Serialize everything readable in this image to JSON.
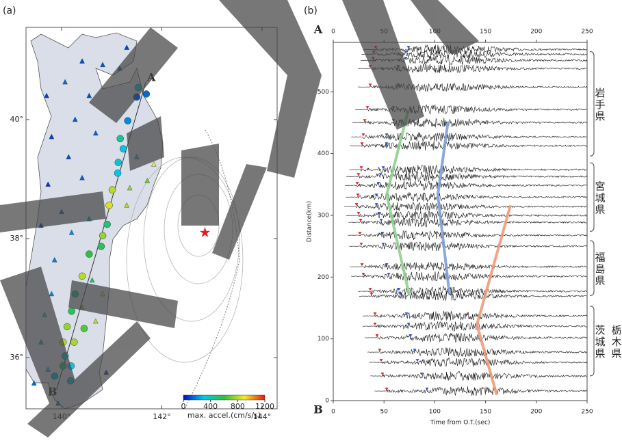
{
  "chart_data": [
    {
      "type": "map",
      "label": "(a)",
      "xlim": [
        139.29,
        144.3
      ],
      "ylim": [
        35.14,
        41.55
      ],
      "xticks": [
        {
          "value": 140,
          "label": "140°"
        },
        {
          "value": 142,
          "label": "142°"
        },
        {
          "value": 144,
          "label": "144°"
        }
      ],
      "yticks": [
        {
          "value": 36,
          "label": "36°"
        },
        {
          "value": 38,
          "label": "38°"
        },
        {
          "value": 40,
          "label": "40°"
        }
      ],
      "profile": {
        "names": [
          "A",
          "B"
        ],
        "lon": [
          141.68,
          139.9
        ],
        "lat": [
          40.63,
          35.46
        ]
      },
      "epicenter": {
        "lon": 142.86,
        "lat": 38.1,
        "color": "#e02020"
      },
      "circles": {
        "lon": [
          141.53,
          141.69,
          141.5,
          141.32,
          141.17,
          141.23,
          141.13,
          141.12,
          141.01,
          140.95,
          140.91,
          140.82,
          140.79,
          140.55,
          140.41,
          140.27,
          140.2,
          140.11,
          140.45,
          140.03,
          140.25,
          140.07,
          140.03,
          140.19,
          139.86,
          140.18
        ],
        "lat": [
          40.54,
          40.43,
          40.38,
          39.98,
          39.68,
          39.51,
          39.28,
          39.1,
          38.82,
          38.56,
          38.24,
          38.05,
          37.87,
          37.74,
          37.37,
          37.07,
          36.78,
          36.52,
          36.49,
          36.26,
          36.26,
          36.03,
          35.86,
          35.86,
          35.69,
          35.61
        ],
        "accel": [
          300,
          150,
          100,
          200,
          450,
          300,
          350,
          300,
          800,
          850,
          500,
          750,
          550,
          600,
          800,
          450,
          550,
          750,
          650,
          800,
          780,
          350,
          500,
          300,
          250,
          280
        ]
      },
      "triangles": {
        "lon": [
          140.07,
          140.41,
          140.82,
          141.16,
          141.3,
          140.55,
          139.7,
          140.27,
          139.8,
          140.68,
          140.14,
          141.5,
          141.84,
          141.71,
          141.36,
          140.41,
          139.73,
          140.0,
          140.55,
          141.3,
          139.59,
          140.2,
          139.86,
          140.61,
          140.82,
          139.8,
          139.66,
          140.41,
          140.68,
          139.59,
          139.73,
          139.45,
          139.93,
          140.89
        ],
        "lat": [
          40.63,
          40.98,
          40.92,
          40.86,
          41.21,
          40.4,
          40.4,
          40.0,
          39.71,
          39.77,
          39.37,
          39.37,
          39.25,
          38.97,
          38.85,
          39.02,
          38.91,
          38.45,
          38.33,
          38.56,
          38.22,
          38.1,
          37.64,
          37.3,
          37.07,
          37.07,
          36.72,
          36.84,
          36.61,
          36.26,
          35.8,
          35.57,
          35.23,
          35.75
        ],
        "accel": [
          150,
          100,
          120,
          180,
          90,
          110,
          80,
          120,
          70,
          140,
          100,
          350,
          900,
          700,
          750,
          130,
          60,
          150,
          250,
          800,
          50,
          200,
          180,
          500,
          850,
          200,
          300,
          700,
          800,
          250,
          300,
          150,
          180,
          80
        ]
      },
      "colorbar": {
        "lim": [
          0,
          1200
        ],
        "ticks": [
          0,
          400,
          800,
          1200
        ],
        "label": "max. accel.(cm/s/s)",
        "colors": [
          "#0010c0",
          "#00c8e8",
          "#30c040",
          "#f8e820",
          "#e02010"
        ]
      }
    },
    {
      "type": "record-section",
      "label": "(b)",
      "xlim": [
        0,
        250
      ],
      "xticks": [
        0,
        50,
        100,
        150,
        200,
        250
      ],
      "xlabel": "Time from O.T.(sec)",
      "ylim": [
        0,
        580
      ],
      "yticks": [
        0,
        100,
        200,
        300,
        400,
        500
      ],
      "ylabel": "Distance(km)",
      "profile_names": [
        "A",
        "B"
      ],
      "distances": [
        568.6,
        560.8,
        550.9,
        537.6,
        507.7,
        471.2,
        450.2,
        427.0,
        412.6,
        373.9,
        362.8,
        348.5,
        329.6,
        314.2,
        299.8,
        288.7,
        267.7,
        250.0,
        216.8,
        201.3,
        177.0,
        169.2,
        137.2,
        120.6,
        101.8,
        78.5,
        61.9,
        39.8,
        15.5
      ],
      "p_arrivals": [
        41.8,
        39.8,
        39.1,
        36.4,
        36.4,
        33.7,
        31.0,
        29.6,
        28.3,
        27.6,
        24.9,
        23.6,
        24.3,
        22.9,
        24.9,
        27.0,
        26.3,
        27.6,
        28.3,
        29.6,
        36.4,
        37.7,
        41.1,
        41.1,
        43.1,
        45.8,
        47.2,
        48.5,
        52.6
      ],
      "s_arrivals": [
        74.1,
        71.4,
        71.4,
        64.0,
        64.0,
        59.3,
        59.3,
        52.6,
        52.6,
        49.2,
        46.5,
        44.5,
        42.5,
        42.5,
        45.1,
        47.2,
        48.5,
        49.2,
        52.6,
        54.6,
        64.7,
        66.0,
        72.1,
        74.1,
        76.1,
        80.2,
        82.9,
        86.9,
        92.3
      ],
      "p_color": "#e02020",
      "s_color": "#3050c8",
      "phase_lines": [
        {
          "color": "#8fd08f",
          "time": [
            74,
            52.6,
            75
          ],
          "distance": [
            471,
            333,
            170
          ]
        },
        {
          "color": "#7f9fd8",
          "time": [
            113,
            103,
            114.5
          ],
          "distance": [
            451,
            333,
            172
          ]
        },
        {
          "color": "#f09a78",
          "time": [
            174.5,
            141.5,
            161
          ],
          "distance": [
            316,
            123,
            9
          ]
        }
      ],
      "groups": [
        {
          "names": [
            "岩手県"
          ],
          "range": [
            396,
            565
          ]
        },
        {
          "names": [
            "宮城県"
          ],
          "range": [
            274,
            385
          ]
        },
        {
          "names": [
            "福島県"
          ],
          "range": [
            170,
            259
          ]
        },
        {
          "names": [
            "茨城県",
            "栃木県"
          ],
          "range": [
            40,
            153
          ]
        }
      ]
    }
  ]
}
